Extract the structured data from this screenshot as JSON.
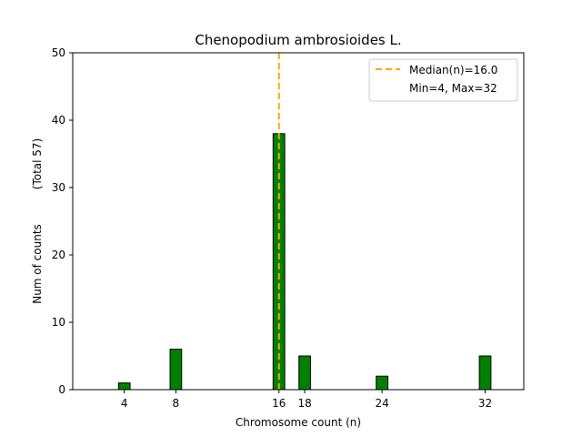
{
  "chart_data": {
    "type": "bar",
    "title": "Chenopodium ambrosioides L.",
    "xlabel": "Chromosome count (n)",
    "ylabel": "Num of counts",
    "ylabel_total": "(Total 57)",
    "x": [
      4,
      8,
      16,
      18,
      24,
      32
    ],
    "values": [
      1,
      6,
      38,
      5,
      2,
      5
    ],
    "xticks": [
      4,
      8,
      16,
      18,
      24,
      32
    ],
    "yticks": [
      0,
      10,
      20,
      30,
      40,
      50
    ],
    "xlim": [
      0,
      35
    ],
    "ylim": [
      0,
      50
    ],
    "median": 16.0,
    "legend": {
      "position": "top-right",
      "entries": [
        "Median(n)=16.0",
        "Min=4, Max=32"
      ]
    },
    "colors": {
      "bar_fill": "#008000",
      "bar_edge": "#000000",
      "median_line": "#FFA500"
    }
  }
}
